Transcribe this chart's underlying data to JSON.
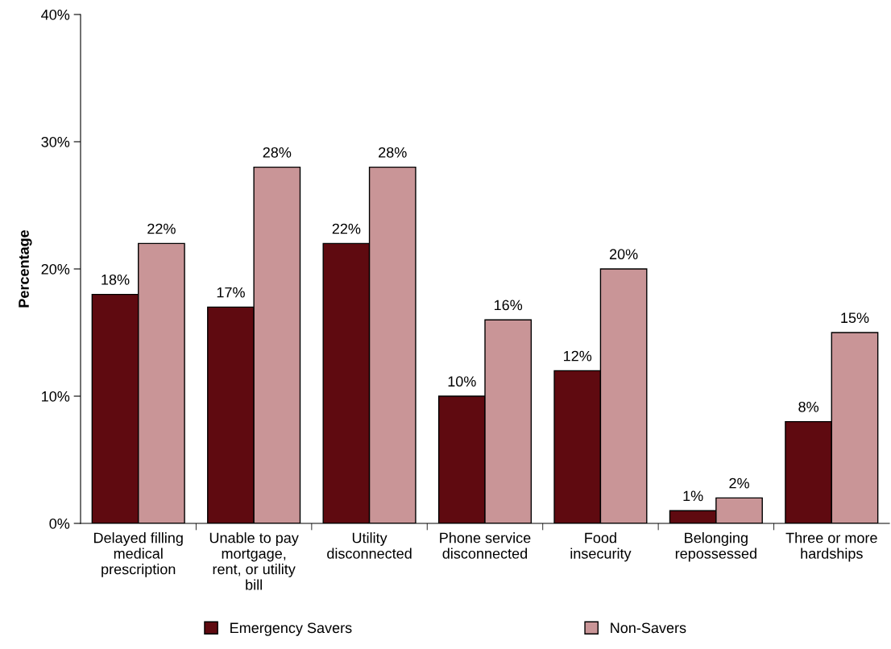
{
  "chart_data": {
    "type": "bar",
    "ylabel": "Percentage",
    "categories": [
      "Delayed filling\nmedical\nprescription",
      "Unable to pay\nmortgage,\nrent, or utility\nbill",
      "Utility\ndisconnected",
      "Phone service\ndisconnected",
      "Food\ninsecurity",
      "Belonging\nrepossessed",
      "Three or more\nhardships"
    ],
    "series": [
      {
        "name": "Emergency Savers",
        "color": "#5f0a10",
        "values": [
          18,
          17,
          22,
          10,
          12,
          1,
          8
        ],
        "value_labels": [
          "18%",
          "17%",
          "22%",
          "10%",
          "12%",
          "1%",
          "8%"
        ]
      },
      {
        "name": "Non-Savers",
        "color": "#c99597",
        "values": [
          22,
          28,
          28,
          16,
          20,
          2,
          15
        ],
        "value_labels": [
          "22%",
          "28%",
          "28%",
          "16%",
          "20%",
          "2%",
          "15%"
        ]
      }
    ],
    "ylim": [
      0,
      40
    ],
    "yticks": [
      {
        "value": 0,
        "label": "0%"
      },
      {
        "value": 10,
        "label": "10%"
      },
      {
        "value": 20,
        "label": "20%"
      },
      {
        "value": 30,
        "label": "30%"
      },
      {
        "value": 40,
        "label": "40%"
      }
    ],
    "grid": false,
    "legend": "bottom"
  }
}
